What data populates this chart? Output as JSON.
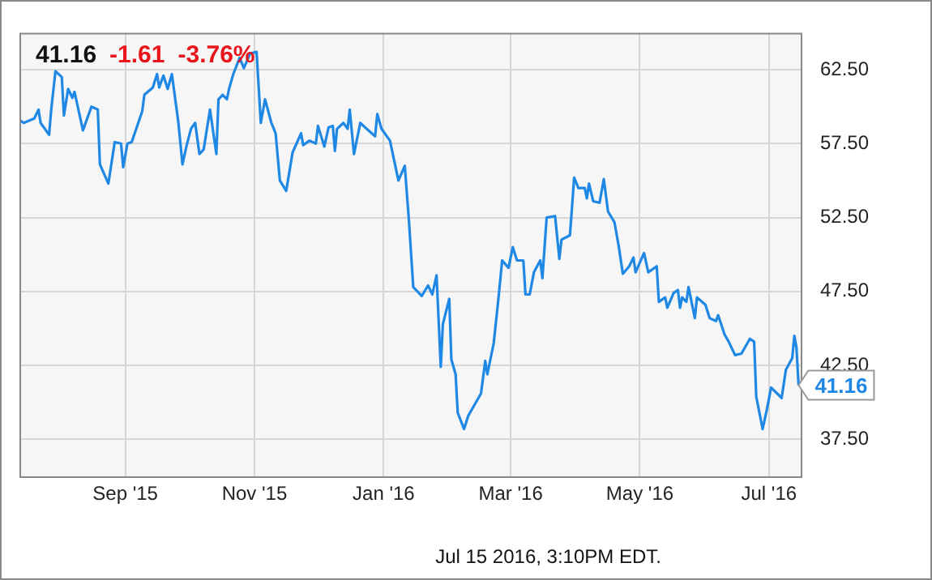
{
  "chart_data": {
    "type": "line",
    "annotations": [
      "41.16",
      "-1.61",
      "-3.76%",
      "Jul 15 2016, 3:10PM EDT.",
      {
        "text": "41.16",
        "x": "2016-07-15",
        "y": 41.16
      }
    ],
    "x": [
      "2015-07-13",
      "2015-07-15",
      "2015-07-20",
      "2015-07-22",
      "2015-07-23",
      "2015-07-27",
      "2015-07-28",
      "2015-07-30",
      "2015-08-02",
      "2015-08-03",
      "2015-08-05",
      "2015-08-07",
      "2015-08-08",
      "2015-08-12",
      "2015-08-16",
      "2015-08-19",
      "2015-08-20",
      "2015-08-24",
      "2015-08-27",
      "2015-08-30",
      "2015-08-31",
      "2015-09-02",
      "2015-09-04",
      "2015-09-09",
      "2015-09-10",
      "2015-09-14",
      "2015-09-16",
      "2015-09-17",
      "2015-09-19",
      "2015-09-21",
      "2015-09-23",
      "2015-09-26",
      "2015-09-28",
      "2015-09-30",
      "2015-10-02",
      "2015-10-04",
      "2015-10-06",
      "2015-10-08",
      "2015-10-11",
      "2015-10-14",
      "2015-10-15",
      "2015-10-17",
      "2015-10-19",
      "2015-10-20",
      "2015-10-22",
      "2015-10-25",
      "2015-10-27",
      "2015-10-30",
      "2015-11-02",
      "2015-11-04",
      "2015-11-06",
      "2015-11-09",
      "2015-11-11",
      "2015-11-13",
      "2015-11-16",
      "2015-11-19",
      "2015-11-23",
      "2015-11-24",
      "2015-11-27",
      "2015-11-30",
      "2015-12-01",
      "2015-12-04",
      "2015-12-06",
      "2015-12-08",
      "2015-12-09",
      "2015-12-10",
      "2015-12-13",
      "2015-12-15",
      "2015-12-16",
      "2015-12-18",
      "2015-12-21",
      "2015-12-24",
      "2015-12-28",
      "2015-12-29",
      "2015-12-31",
      "2016-01-04",
      "2016-01-08",
      "2016-01-11",
      "2016-01-13",
      "2016-01-15",
      "2016-01-19",
      "2016-01-22",
      "2016-01-24",
      "2016-01-26",
      "2016-01-28",
      "2016-01-29",
      "2016-02-01",
      "2016-02-02",
      "2016-02-04",
      "2016-02-05",
      "2016-02-08",
      "2016-02-10",
      "2016-02-16",
      "2016-02-18",
      "2016-02-19",
      "2016-02-22",
      "2016-02-24",
      "2016-02-26",
      "2016-02-29",
      "2016-03-02",
      "2016-03-04",
      "2016-03-07",
      "2016-03-08",
      "2016-03-10",
      "2016-03-12",
      "2016-03-15",
      "2016-03-16",
      "2016-03-18",
      "2016-03-22",
      "2016-03-24",
      "2016-03-25",
      "2016-03-29",
      "2016-03-31",
      "2016-04-02",
      "2016-04-05",
      "2016-04-06",
      "2016-04-07",
      "2016-04-09",
      "2016-04-12",
      "2016-04-14",
      "2016-04-16",
      "2016-04-19",
      "2016-04-21",
      "2016-04-23",
      "2016-04-26",
      "2016-04-28",
      "2016-04-29",
      "2016-05-03",
      "2016-05-05",
      "2016-05-09",
      "2016-05-10",
      "2016-05-13",
      "2016-05-14",
      "2016-05-17",
      "2016-05-19",
      "2016-05-20",
      "2016-05-21",
      "2016-05-23",
      "2016-05-24",
      "2016-05-27",
      "2016-05-28",
      "2016-06-01",
      "2016-06-03",
      "2016-06-06",
      "2016-06-07",
      "2016-06-10",
      "2016-06-12",
      "2016-06-15",
      "2016-06-18",
      "2016-06-22",
      "2016-06-24",
      "2016-06-25",
      "2016-06-28",
      "2016-06-30",
      "2016-07-02",
      "2016-07-07",
      "2016-07-09",
      "2016-07-12",
      "2016-07-13",
      "2016-07-14",
      "2016-07-15"
    ],
    "series": [
      {
        "color": "#1f88e5",
        "values": [
          59.1,
          58.9,
          59.2,
          59.8,
          58.9,
          58.1,
          59.8,
          62.4,
          62.0,
          59.4,
          61.2,
          60.6,
          61.0,
          58.4,
          60.0,
          59.8,
          56.1,
          54.8,
          57.6,
          57.5,
          55.9,
          57.5,
          57.6,
          59.7,
          60.8,
          61.3,
          62.2,
          61.3,
          62.1,
          61.2,
          62.2,
          59.0,
          56.1,
          57.4,
          58.5,
          58.9,
          56.8,
          57.1,
          59.8,
          56.8,
          60.5,
          60.8,
          60.5,
          61.2,
          62.2,
          63.3,
          62.6,
          63.6,
          63.7,
          58.9,
          60.5,
          58.9,
          58.2,
          55.0,
          54.3,
          56.9,
          58.2,
          57.4,
          57.7,
          57.5,
          58.7,
          57.3,
          58.6,
          58.7,
          57.0,
          58.5,
          58.9,
          58.5,
          59.8,
          56.8,
          58.9,
          58.5,
          58.0,
          59.5,
          58.5,
          57.7,
          55.0,
          56.0,
          52.2,
          47.8,
          47.2,
          47.9,
          47.3,
          48.6,
          42.4,
          45.3,
          47.0,
          42.9,
          41.9,
          39.3,
          38.2,
          39.1,
          40.6,
          42.8,
          41.9,
          44.0,
          46.7,
          49.6,
          49.1,
          50.5,
          49.6,
          49.6,
          47.3,
          47.3,
          48.8,
          49.6,
          48.4,
          52.5,
          52.6,
          49.7,
          51.0,
          51.3,
          55.2,
          54.5,
          54.5,
          53.8,
          54.8,
          53.6,
          53.5,
          55.1,
          52.9,
          52.2,
          50.6,
          48.7,
          49.2,
          49.8,
          48.8,
          50.1,
          48.8,
          49.2,
          46.8,
          47.1,
          46.4,
          47.4,
          47.6,
          46.4,
          47.1,
          46.8,
          47.8,
          45.7,
          47.1,
          46.6,
          45.7,
          45.5,
          45.9,
          44.6,
          44.1,
          43.2,
          43.3,
          44.3,
          44.1,
          40.4,
          38.2,
          39.5,
          41.0,
          40.3,
          42.2,
          43.0,
          44.5,
          43.7,
          41.16
        ]
      }
    ],
    "xlim": [
      "2015-07-13",
      "2016-07-16"
    ],
    "xticks": [
      {
        "value": "2015-09-01",
        "label": "Sep '15"
      },
      {
        "value": "2015-11-01",
        "label": "Nov '15"
      },
      {
        "value": "2016-01-01",
        "label": "Jan '16"
      },
      {
        "value": "2016-03-01",
        "label": "Mar '16"
      },
      {
        "value": "2016-05-01",
        "label": "May '16"
      },
      {
        "value": "2016-07-01",
        "label": "Jul '16"
      }
    ],
    "ylim": [
      35,
      65
    ],
    "yticks": [
      {
        "value": 37.5,
        "label": "37.50"
      },
      {
        "value": 42.5,
        "label": "42.50"
      },
      {
        "value": 47.5,
        "label": "47.50"
      },
      {
        "value": 52.5,
        "label": "52.50"
      },
      {
        "value": 57.5,
        "label": "57.50"
      },
      {
        "value": 62.5,
        "label": "62.50"
      }
    ],
    "grid": true
  }
}
